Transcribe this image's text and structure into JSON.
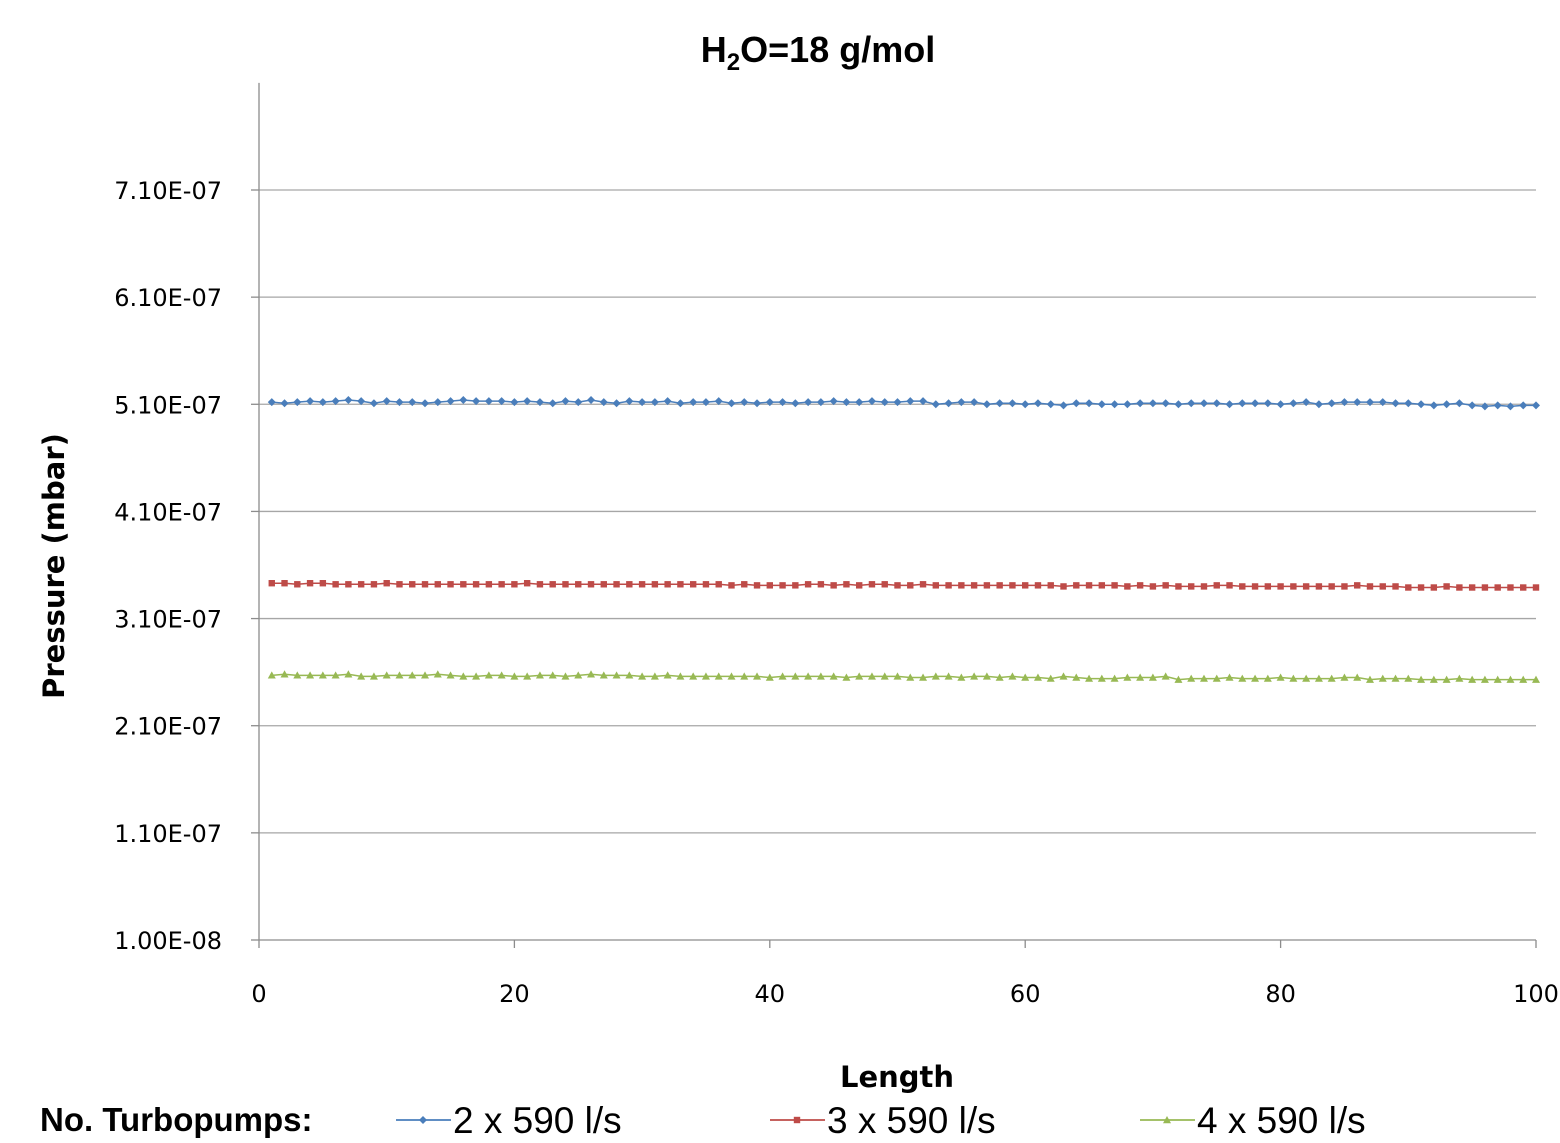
{
  "chart_data": {
    "type": "line",
    "title": {
      "main": "H",
      "sub": "2",
      "rest": "O=18 g/mol"
    },
    "xlabel": "Length",
    "ylabel": "Pressure (mbar)",
    "xlim": [
      0,
      100
    ],
    "ylim": [
      1e-08,
      8.1e-07
    ],
    "xticks": [
      0,
      20,
      40,
      60,
      80,
      100
    ],
    "xtick_labels": [
      "0",
      "20",
      "40",
      "60",
      "80",
      "100"
    ],
    "yticks": [
      1e-08,
      1.1e-07,
      2.1e-07,
      3.1e-07,
      4.1e-07,
      5.1e-07,
      6.1e-07,
      7.1e-07
    ],
    "ytick_labels": [
      "1.00E-08",
      "1.10E-07",
      "2.10E-07",
      "3.10E-07",
      "4.10E-07",
      "5.10E-07",
      "6.10E-07",
      "7.10E-07"
    ],
    "grid": "horizontal",
    "legend": {
      "title": "No. Turbopumps:",
      "placement": "bottom"
    },
    "x": [
      1,
      2,
      3,
      4,
      5,
      6,
      7,
      8,
      9,
      10,
      11,
      12,
      13,
      14,
      15,
      16,
      17,
      18,
      19,
      20,
      21,
      22,
      23,
      24,
      25,
      26,
      27,
      28,
      29,
      30,
      31,
      32,
      33,
      34,
      35,
      36,
      37,
      38,
      39,
      40,
      41,
      42,
      43,
      44,
      45,
      46,
      47,
      48,
      49,
      50,
      51,
      52,
      53,
      54,
      55,
      56,
      57,
      58,
      59,
      60,
      61,
      62,
      63,
      64,
      65,
      66,
      67,
      68,
      69,
      70,
      71,
      72,
      73,
      74,
      75,
      76,
      77,
      78,
      79,
      80,
      81,
      82,
      83,
      84,
      85,
      86,
      87,
      88,
      89,
      90,
      91,
      92,
      93,
      94,
      95,
      96,
      97,
      98,
      99,
      100
    ],
    "series": [
      {
        "name": "2 x 590 l/s",
        "color": "#4a7ebb",
        "marker": "diamond",
        "values": [
          5.12e-07,
          5.11e-07,
          5.12e-07,
          5.13e-07,
          5.12e-07,
          5.13e-07,
          5.14e-07,
          5.13e-07,
          5.11e-07,
          5.13e-07,
          5.12e-07,
          5.12e-07,
          5.11e-07,
          5.12e-07,
          5.13e-07,
          5.14e-07,
          5.13e-07,
          5.13e-07,
          5.13e-07,
          5.12e-07,
          5.13e-07,
          5.12e-07,
          5.11e-07,
          5.13e-07,
          5.12e-07,
          5.14e-07,
          5.12e-07,
          5.11e-07,
          5.13e-07,
          5.12e-07,
          5.12e-07,
          5.13e-07,
          5.11e-07,
          5.12e-07,
          5.12e-07,
          5.13e-07,
          5.11e-07,
          5.12e-07,
          5.11e-07,
          5.12e-07,
          5.12e-07,
          5.11e-07,
          5.12e-07,
          5.12e-07,
          5.13e-07,
          5.12e-07,
          5.12e-07,
          5.13e-07,
          5.12e-07,
          5.12e-07,
          5.13e-07,
          5.13e-07,
          5.1e-07,
          5.11e-07,
          5.12e-07,
          5.12e-07,
          5.1e-07,
          5.11e-07,
          5.11e-07,
          5.1e-07,
          5.11e-07,
          5.1e-07,
          5.09e-07,
          5.11e-07,
          5.11e-07,
          5.1e-07,
          5.1e-07,
          5.1e-07,
          5.11e-07,
          5.11e-07,
          5.11e-07,
          5.1e-07,
          5.11e-07,
          5.11e-07,
          5.11e-07,
          5.1e-07,
          5.11e-07,
          5.11e-07,
          5.11e-07,
          5.1e-07,
          5.11e-07,
          5.12e-07,
          5.1e-07,
          5.11e-07,
          5.12e-07,
          5.12e-07,
          5.12e-07,
          5.12e-07,
          5.11e-07,
          5.11e-07,
          5.1e-07,
          5.09e-07,
          5.1e-07,
          5.11e-07,
          5.09e-07,
          5.08e-07,
          5.09e-07,
          5.08e-07,
          5.09e-07,
          5.09e-07
        ]
      },
      {
        "name": "3 x 590 l/s",
        "color": "#be4b48",
        "marker": "square",
        "values": [
          3.43e-07,
          3.43e-07,
          3.42e-07,
          3.43e-07,
          3.43e-07,
          3.42e-07,
          3.42e-07,
          3.42e-07,
          3.42e-07,
          3.43e-07,
          3.42e-07,
          3.42e-07,
          3.42e-07,
          3.42e-07,
          3.42e-07,
          3.42e-07,
          3.42e-07,
          3.42e-07,
          3.42e-07,
          3.42e-07,
          3.43e-07,
          3.42e-07,
          3.42e-07,
          3.42e-07,
          3.42e-07,
          3.42e-07,
          3.42e-07,
          3.42e-07,
          3.42e-07,
          3.42e-07,
          3.42e-07,
          3.42e-07,
          3.42e-07,
          3.42e-07,
          3.42e-07,
          3.42e-07,
          3.41e-07,
          3.42e-07,
          3.41e-07,
          3.41e-07,
          3.41e-07,
          3.41e-07,
          3.42e-07,
          3.42e-07,
          3.41e-07,
          3.42e-07,
          3.41e-07,
          3.42e-07,
          3.42e-07,
          3.41e-07,
          3.41e-07,
          3.42e-07,
          3.41e-07,
          3.41e-07,
          3.41e-07,
          3.41e-07,
          3.41e-07,
          3.41e-07,
          3.41e-07,
          3.41e-07,
          3.41e-07,
          3.41e-07,
          3.4e-07,
          3.41e-07,
          3.41e-07,
          3.41e-07,
          3.41e-07,
          3.4e-07,
          3.41e-07,
          3.4e-07,
          3.41e-07,
          3.4e-07,
          3.4e-07,
          3.4e-07,
          3.41e-07,
          3.41e-07,
          3.4e-07,
          3.4e-07,
          3.4e-07,
          3.4e-07,
          3.4e-07,
          3.4e-07,
          3.4e-07,
          3.4e-07,
          3.4e-07,
          3.41e-07,
          3.4e-07,
          3.4e-07,
          3.4e-07,
          3.39e-07,
          3.39e-07,
          3.39e-07,
          3.4e-07,
          3.39e-07,
          3.39e-07,
          3.39e-07,
          3.39e-07,
          3.39e-07,
          3.39e-07,
          3.39e-07
        ]
      },
      {
        "name": "4 x 590 l/s",
        "color": "#98b954",
        "marker": "triangle",
        "values": [
          2.57e-07,
          2.58e-07,
          2.57e-07,
          2.57e-07,
          2.57e-07,
          2.57e-07,
          2.58e-07,
          2.56e-07,
          2.56e-07,
          2.57e-07,
          2.57e-07,
          2.57e-07,
          2.57e-07,
          2.58e-07,
          2.57e-07,
          2.56e-07,
          2.56e-07,
          2.57e-07,
          2.57e-07,
          2.56e-07,
          2.56e-07,
          2.57e-07,
          2.57e-07,
          2.56e-07,
          2.57e-07,
          2.58e-07,
          2.57e-07,
          2.57e-07,
          2.57e-07,
          2.56e-07,
          2.56e-07,
          2.57e-07,
          2.56e-07,
          2.56e-07,
          2.56e-07,
          2.56e-07,
          2.56e-07,
          2.56e-07,
          2.56e-07,
          2.55e-07,
          2.56e-07,
          2.56e-07,
          2.56e-07,
          2.56e-07,
          2.56e-07,
          2.55e-07,
          2.56e-07,
          2.56e-07,
          2.56e-07,
          2.56e-07,
          2.55e-07,
          2.55e-07,
          2.56e-07,
          2.56e-07,
          2.55e-07,
          2.56e-07,
          2.56e-07,
          2.55e-07,
          2.56e-07,
          2.55e-07,
          2.55e-07,
          2.54e-07,
          2.56e-07,
          2.55e-07,
          2.54e-07,
          2.54e-07,
          2.54e-07,
          2.55e-07,
          2.55e-07,
          2.55e-07,
          2.56e-07,
          2.53e-07,
          2.54e-07,
          2.54e-07,
          2.54e-07,
          2.55e-07,
          2.54e-07,
          2.54e-07,
          2.54e-07,
          2.55e-07,
          2.54e-07,
          2.54e-07,
          2.54e-07,
          2.54e-07,
          2.55e-07,
          2.55e-07,
          2.53e-07,
          2.54e-07,
          2.54e-07,
          2.54e-07,
          2.53e-07,
          2.53e-07,
          2.53e-07,
          2.54e-07,
          2.53e-07,
          2.53e-07,
          2.53e-07,
          2.53e-07,
          2.53e-07,
          2.53e-07
        ]
      }
    ]
  }
}
